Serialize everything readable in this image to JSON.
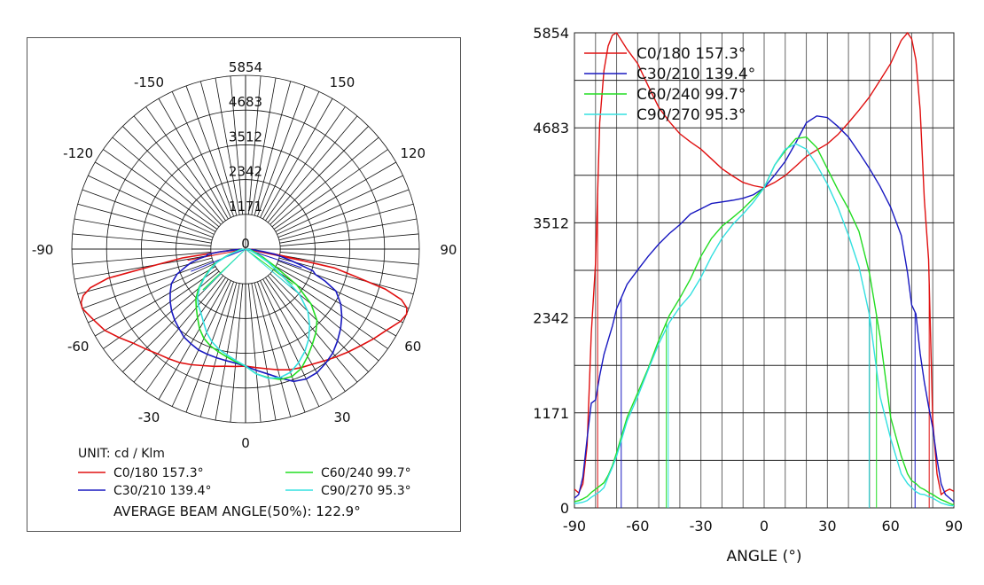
{
  "chart_data": [
    {
      "type": "polar",
      "unit_label": "UNIT: cd / Klm",
      "average_beam_angle_label": "AVERAGE BEAM ANGLE(50%): 122.9°",
      "radial_ticks": [
        "0",
        "1171",
        "2342",
        "3512",
        "4683",
        "5854"
      ],
      "radial_tick_values": [
        0,
        1171,
        2342,
        3512,
        4683,
        5854
      ],
      "angle_ticks": [
        "-150",
        "150",
        "-120",
        "120",
        "-90",
        "90",
        "-60",
        "60",
        "-30",
        "30",
        "0"
      ],
      "angle_tick_values": [
        -150,
        150,
        -120,
        120,
        -90,
        90,
        -60,
        60,
        -30,
        30,
        0
      ],
      "rmax": 5854,
      "grid": true,
      "legend_position": "bottom"
    },
    {
      "type": "line",
      "xlabel": "ANGLE (°)",
      "ylabel": "",
      "xlim": [
        -90,
        90
      ],
      "ylim": [
        0,
        5854
      ],
      "xticks": [
        "-90",
        "-60",
        "-30",
        "0",
        "30",
        "60",
        "90"
      ],
      "xtick_values": [
        -90,
        -60,
        -30,
        0,
        30,
        60,
        90
      ],
      "yticks": [
        "0",
        "1171",
        "2342",
        "3512",
        "4683",
        "5854"
      ],
      "ytick_values": [
        0,
        1171,
        2342,
        3512,
        4683,
        5854
      ],
      "grid": true,
      "legend_position": "top-left"
    }
  ],
  "series_x": [
    -90,
    -88,
    -86,
    -84,
    -82,
    -80,
    -78,
    -76,
    -74,
    -72,
    -70,
    -65,
    -60,
    -55,
    -50,
    -45,
    -40,
    -35,
    -30,
    -25,
    -20,
    -15,
    -10,
    -5,
    0,
    5,
    10,
    15,
    20,
    25,
    30,
    35,
    40,
    45,
    50,
    55,
    60,
    65,
    68,
    70,
    72,
    74,
    76,
    78,
    80,
    82,
    84,
    86,
    88,
    90
  ],
  "series": [
    {
      "name": "C0/180 157.3°",
      "color": "#e01010",
      "beam_edges": [
        -79,
        78.3
      ],
      "values": [
        230,
        185,
        295,
        770,
        2150,
        3015,
        4745,
        5390,
        5690,
        5825,
        5854,
        5650,
        5475,
        5200,
        4935,
        4760,
        4610,
        4510,
        4420,
        4300,
        4180,
        4090,
        4010,
        3970,
        3945,
        4010,
        4095,
        4210,
        4330,
        4410,
        4485,
        4600,
        4745,
        4900,
        5065,
        5270,
        5475,
        5760,
        5854,
        5780,
        5520,
        4900,
        3800,
        3060,
        1070,
        420,
        165,
        205,
        230,
        205
      ]
    },
    {
      "name": "C30/210 139.4°",
      "color": "#1818c0",
      "beam_edges": [
        -67.8,
        71.6
      ],
      "values": [
        120,
        165,
        380,
        855,
        1290,
        1330,
        1630,
        1890,
        2065,
        2240,
        2455,
        2755,
        2930,
        3100,
        3250,
        3380,
        3490,
        3620,
        3685,
        3750,
        3770,
        3790,
        3815,
        3860,
        3945,
        4100,
        4270,
        4500,
        4745,
        4830,
        4810,
        4700,
        4570,
        4380,
        4180,
        3960,
        3705,
        3360,
        2900,
        2500,
        2390,
        1900,
        1550,
        1250,
        985,
        600,
        295,
        165,
        120,
        78
      ]
    },
    {
      "name": "C60/240 99.7°",
      "color": "#22dd22",
      "beam_edges": [
        -46.4,
        53.3
      ],
      "values": [
        78,
        90,
        110,
        140,
        190,
        230,
        270,
        310,
        400,
        520,
        680,
        1115,
        1415,
        1720,
        2065,
        2370,
        2585,
        2820,
        3100,
        3320,
        3470,
        3575,
        3685,
        3815,
        3945,
        4225,
        4400,
        4550,
        4570,
        4440,
        4180,
        3920,
        3685,
        3405,
        2885,
        2110,
        1115,
        640,
        420,
        335,
        300,
        250,
        225,
        190,
        165,
        130,
        100,
        80,
        55,
        35
      ]
    },
    {
      "name": "C90/270 95.3°",
      "color": "#33e0e0",
      "beam_edges": [
        -45.5,
        49.8
      ],
      "values": [
        55,
        60,
        70,
        90,
        130,
        165,
        200,
        250,
        380,
        500,
        640,
        1070,
        1370,
        1700,
        2020,
        2285,
        2475,
        2625,
        2840,
        3100,
        3320,
        3490,
        3620,
        3770,
        3945,
        4225,
        4420,
        4485,
        4420,
        4225,
        3990,
        3705,
        3360,
        2970,
        2370,
        1370,
        855,
        420,
        300,
        250,
        200,
        170,
        165,
        140,
        120,
        90,
        60,
        45,
        30,
        25
      ]
    }
  ]
}
